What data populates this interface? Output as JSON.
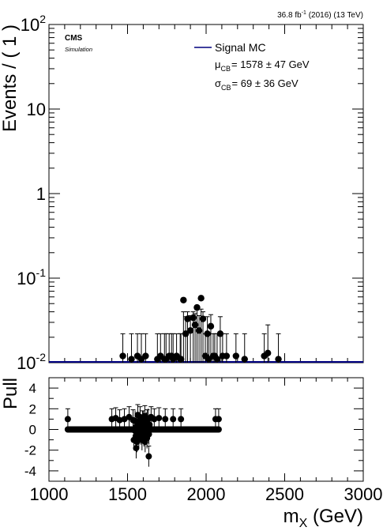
{
  "header": {
    "lumi_text": "36.8 fb",
    "lumi_sup": "-1",
    "lumi_rest": " (2016) (13 TeV)"
  },
  "labels": {
    "experiment": "CMS",
    "simulation": "Simulation",
    "legend_entry": "Signal MC",
    "mu_symbol": "μ",
    "mu_sub": "CB",
    "mu_value": "= 1578 ± 47 GeV",
    "sigma_symbol": "σ",
    "sigma_sub": "CB",
    "sigma_value": "= 69 ± 36 GeV"
  },
  "colors": {
    "curve": "#00007f",
    "points": "#000000",
    "frame": "#000000"
  },
  "chart_data": [
    {
      "type": "scatter",
      "ylabel": "Events / ( 1 )",
      "xlim": [
        1000,
        3000
      ],
      "ylim": [
        0.01,
        100
      ],
      "yscale": "log",
      "y_tick_labels": [
        {
          "base": "10",
          "exp": "-2"
        },
        {
          "base": "10",
          "exp": "-1"
        },
        {
          "base": "1",
          "exp": ""
        },
        {
          "base": "10",
          "exp": ""
        },
        {
          "base": "10",
          "exp": "2"
        }
      ],
      "legend": [
        "Signal MC"
      ],
      "legend_position": "top-right",
      "series": [
        {
          "name": "Signal MC",
          "type": "points",
          "x": [
            1470,
            1525,
            1563,
            1588,
            1615,
            1690,
            1710,
            1735,
            1765,
            1790,
            1812,
            1835,
            1856,
            1870,
            1882,
            1900,
            1918,
            1930,
            1942,
            1955,
            1968,
            1980,
            2008,
            2030,
            2055,
            2090,
            2105,
            2190
          ],
          "y": [
            0.012,
            0.011,
            0.012,
            0.011,
            0.012,
            0.011,
            0.012,
            0.011,
            0.012,
            0.011,
            0.012,
            0.011,
            0.055,
            0.022,
            0.033,
            0.024,
            0.034,
            0.028,
            0.045,
            0.024,
            0.058,
            0.033,
            0.022,
            0.027,
            0.012,
            0.022,
            0.012,
            0.012
          ],
          "yerr_up": [
            0.022,
            0.022,
            0.022,
            0.022,
            0.022,
            0.022,
            0.022,
            0.022,
            0.022,
            0.022,
            0.022,
            0.022,
            0.04,
            0.035,
            0.04,
            0.036,
            0.04,
            0.038,
            0.042,
            0.036,
            0.043,
            0.04,
            0.035,
            0.037,
            0.022,
            0.035,
            0.022,
            0.022
          ]
        },
        {
          "name": "",
          "type": "points",
          "x": [
            1745,
            1780,
            1840,
            1995,
            2018,
            2045,
            2070,
            2130,
            2245,
            2370,
            2393,
            2460
          ],
          "y": [
            0.011,
            0.012,
            0.011,
            0.012,
            0.011,
            0.012,
            0.011,
            0.012,
            0.011,
            0.012,
            0.013,
            0.011
          ],
          "yerr_up": [
            0.022,
            0.022,
            0.022,
            0.022,
            0.022,
            0.022,
            0.022,
            0.022,
            0.022,
            0.022,
            0.028,
            0.022
          ]
        }
      ]
    },
    {
      "type": "scatter",
      "ylabel": "Pull",
      "xlabel_main": "m",
      "xlabel_sub": "X",
      "xlabel_unit": " (GeV)",
      "xlim": [
        1000,
        3000
      ],
      "ylim": [
        -5,
        5
      ],
      "x_ticks": [
        1000,
        1500,
        2000,
        2500,
        3000
      ],
      "y_ticks": [
        -4,
        -2,
        0,
        2,
        4
      ],
      "series": [
        {
          "name": "",
          "type": "points",
          "x": [
            1120,
            1400,
            1425,
            1450,
            1480,
            1510,
            1535,
            1555,
            1565,
            1580,
            1595,
            1610,
            1625,
            1635,
            1650,
            1670,
            1700,
            1740,
            1790,
            1840,
            2060,
            2080
          ],
          "y": [
            1.0,
            1.0,
            1.1,
            0.9,
            1.0,
            1.2,
            0.9,
            -1.8,
            1.4,
            1.2,
            0.8,
            1.3,
            0.9,
            -2.6,
            1.2,
            1.0,
            1.1,
            1.0,
            1.0,
            1.0,
            1.0,
            1.0
          ],
          "yerr": [
            1.0,
            1.0,
            1.0,
            1.0,
            1.0,
            1.0,
            1.0,
            1.0,
            1.0,
            1.0,
            1.0,
            1.0,
            1.0,
            1.0,
            1.0,
            1.0,
            1.0,
            1.0,
            1.0,
            1.0,
            1.0,
            1.0
          ]
        }
      ]
    }
  ]
}
